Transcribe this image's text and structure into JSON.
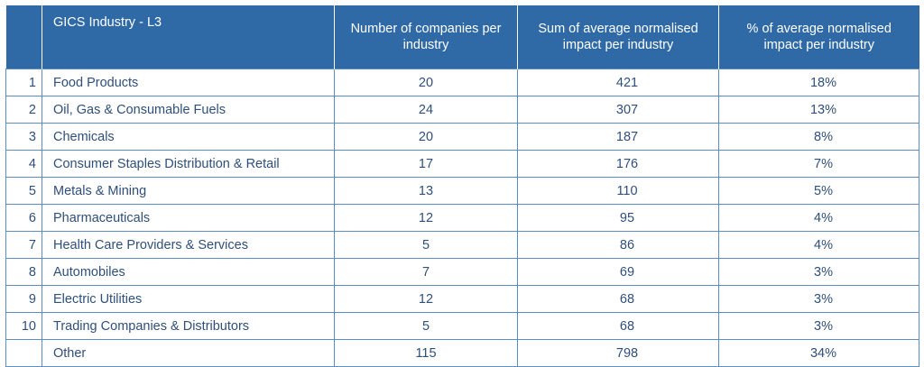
{
  "table": {
    "headers": {
      "index": "",
      "industry": "GICS Industry - L3",
      "companies": "Number of companies per industry",
      "sum_impact": "Sum of average normalised impact per industry",
      "pct_impact": "% of average normalised impact per industry"
    },
    "rows": [
      {
        "index": "1",
        "industry": "Food Products",
        "companies": "20",
        "sum_impact": "421",
        "pct_impact": "18%"
      },
      {
        "index": "2",
        "industry": "Oil, Gas & Consumable Fuels",
        "companies": "24",
        "sum_impact": "307",
        "pct_impact": "13%"
      },
      {
        "index": "3",
        "industry": "Chemicals",
        "companies": "20",
        "sum_impact": "187",
        "pct_impact": "8%"
      },
      {
        "index": "4",
        "industry": "Consumer Staples Distribution & Retail",
        "companies": "17",
        "sum_impact": "176",
        "pct_impact": "7%"
      },
      {
        "index": "5",
        "industry": "Metals & Mining",
        "companies": "13",
        "sum_impact": "110",
        "pct_impact": "5%"
      },
      {
        "index": "6",
        "industry": "Pharmaceuticals",
        "companies": "12",
        "sum_impact": "95",
        "pct_impact": "4%"
      },
      {
        "index": "7",
        "industry": "Health Care Providers & Services",
        "companies": "5",
        "sum_impact": "86",
        "pct_impact": "4%"
      },
      {
        "index": "8",
        "industry": "Automobiles",
        "companies": "7",
        "sum_impact": "69",
        "pct_impact": "3%"
      },
      {
        "index": "9",
        "industry": "Electric Utilities",
        "companies": "12",
        "sum_impact": "68",
        "pct_impact": "3%"
      },
      {
        "index": "10",
        "industry": "Trading Companies & Distributors",
        "companies": "5",
        "sum_impact": "68",
        "pct_impact": "3%"
      },
      {
        "index": "",
        "industry": "Other",
        "companies": "115",
        "sum_impact": "798",
        "pct_impact": "34%"
      }
    ]
  },
  "colors": {
    "header_bg": "#2f6aa7",
    "header_text": "#ffffff",
    "cell_text": "#2f4f7a",
    "border": "#5b8fc4"
  }
}
